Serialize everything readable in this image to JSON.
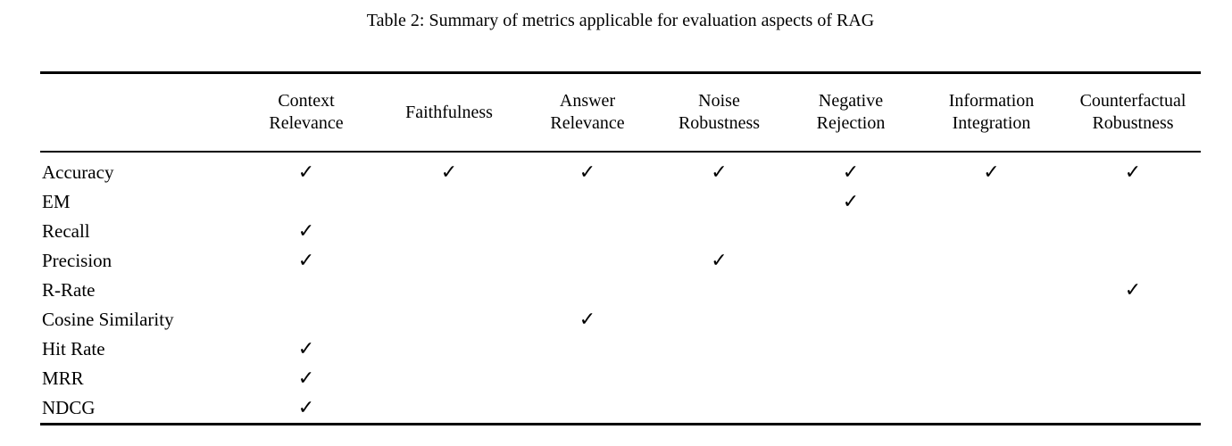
{
  "caption": "Table 2: Summary of metrics applicable for evaluation aspects of RAG",
  "table": {
    "header": {
      "corner_label": "",
      "columns": [
        "Context\nRelevance",
        "Faithfulness",
        "Answer\nRelevance",
        "Noise\nRobustness",
        "Negative\nRejection",
        "Information\nIntegration",
        "Counterfactual\nRobustness"
      ]
    },
    "check_glyph": "✓",
    "rows": [
      {
        "metric": "Accuracy",
        "checks": [
          true,
          true,
          true,
          true,
          true,
          true,
          true
        ]
      },
      {
        "metric": "EM",
        "checks": [
          false,
          false,
          false,
          false,
          true,
          false,
          false
        ]
      },
      {
        "metric": "Recall",
        "checks": [
          true,
          false,
          false,
          false,
          false,
          false,
          false
        ]
      },
      {
        "metric": "Precision",
        "checks": [
          true,
          false,
          false,
          true,
          false,
          false,
          false
        ]
      },
      {
        "metric": "R-Rate",
        "checks": [
          false,
          false,
          false,
          false,
          false,
          false,
          true
        ]
      },
      {
        "metric": "Cosine Similarity",
        "checks": [
          false,
          false,
          true,
          false,
          false,
          false,
          false
        ]
      },
      {
        "metric": "Hit Rate",
        "checks": [
          true,
          false,
          false,
          false,
          false,
          false,
          false
        ]
      },
      {
        "metric": "MRR",
        "checks": [
          true,
          false,
          false,
          false,
          false,
          false,
          false
        ]
      },
      {
        "metric": "NDCG",
        "checks": [
          true,
          false,
          false,
          false,
          false,
          false,
          false
        ]
      }
    ]
  },
  "colors": {
    "text": "#000000",
    "background": "#ffffff",
    "rule": "#000000"
  }
}
